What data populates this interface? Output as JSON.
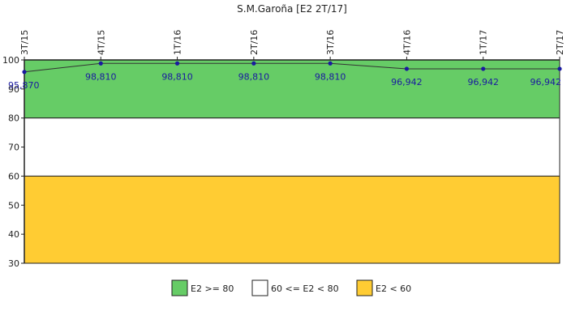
{
  "chart_data": {
    "type": "line",
    "title": "S.M.Garoña [E2 2T/17]",
    "xlabel": "",
    "ylabel": "",
    "categories": [
      "3T/15",
      "4T/15",
      "1T/16",
      "2T/16",
      "3T/16",
      "4T/16",
      "1T/17",
      "2T/17"
    ],
    "series": [
      {
        "values": [
          95.87,
          98.81,
          98.81,
          98.81,
          98.81,
          96.942,
          96.942,
          96.942
        ]
      }
    ],
    "data_labels": [
      "95,870",
      "98,810",
      "98,810",
      "98,810",
      "98,810",
      "96,942",
      "96,942",
      "96,942"
    ],
    "ylim": [
      30,
      100
    ],
    "yticks": [
      30,
      40,
      50,
      60,
      70,
      80,
      90,
      100
    ],
    "bands": [
      {
        "from": 80,
        "to": 100,
        "color": "#66cc66",
        "label": "E2 >= 80"
      },
      {
        "from": 60,
        "to": 80,
        "color": "#ffffff",
        "label": "60 <= E2 < 80"
      },
      {
        "from": 30,
        "to": 60,
        "color": "#ffcc33",
        "label": "E2 < 60"
      }
    ],
    "line_color": "#333333",
    "marker_color": "#1a1aa0",
    "label_color": "#1a1aa0",
    "grid": false,
    "legend_position": "bottom"
  }
}
